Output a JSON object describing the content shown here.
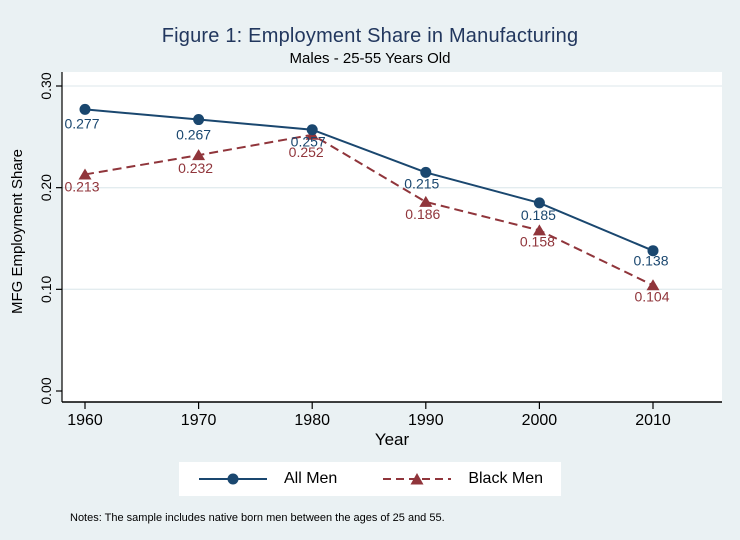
{
  "figure": {
    "title": "Figure 1: Employment Share in Manufacturing",
    "subtitle": "Males - 25-55 Years Old",
    "notes": "Notes: The sample includes native born men between the ages of 25 and 55."
  },
  "colors": {
    "background": "#eaf1f3",
    "plot_background": "#ffffff",
    "gridline": "#e3ecef",
    "axis": "#000000",
    "title": "#22375e",
    "all_men": "#1a476f",
    "black_men": "#90353b"
  },
  "chart_data": {
    "type": "line",
    "title": "Figure 1: Employment Share in Manufacturing",
    "subtitle": "Males - 25-55 Years Old",
    "xlabel": "Year",
    "ylabel": "MFG Employment Share",
    "x": [
      1960,
      1970,
      1980,
      1990,
      2000,
      2010
    ],
    "x_tick_labels": [
      "1960",
      "1970",
      "1980",
      "1990",
      "2000",
      "2010"
    ],
    "y_ticks": [
      0.0,
      0.1,
      0.2,
      0.3
    ],
    "y_tick_labels": [
      "0.00",
      "0.10",
      "0.20",
      "0.30"
    ],
    "ylim": [
      0.0,
      0.3
    ],
    "grid": true,
    "legend_position": "bottom-center",
    "series": [
      {
        "name": "All Men",
        "values": [
          0.277,
          0.267,
          0.257,
          0.215,
          0.185,
          0.138
        ],
        "point_labels": [
          "0.277",
          "0.267",
          "0.257",
          "0.215",
          "0.185",
          "0.138"
        ],
        "color": "#1a476f",
        "marker": "circle",
        "line_style": "solid",
        "label_dx": [
          -3,
          -5,
          -4,
          -4,
          -1,
          -2
        ],
        "label_dy": [
          19,
          20,
          17,
          16,
          17,
          15
        ]
      },
      {
        "name": "Black Men",
        "values": [
          0.213,
          0.232,
          0.252,
          0.186,
          0.158,
          0.104
        ],
        "point_labels": [
          "0.213",
          "0.232",
          "0.252",
          "0.186",
          "0.158",
          "0.104"
        ],
        "color": "#90353b",
        "marker": "triangle",
        "line_style": "dashed",
        "label_dx": [
          -3,
          -3,
          -6,
          -3,
          -2,
          -1
        ],
        "label_dy": [
          17,
          18,
          22,
          17,
          16,
          16
        ]
      }
    ]
  }
}
